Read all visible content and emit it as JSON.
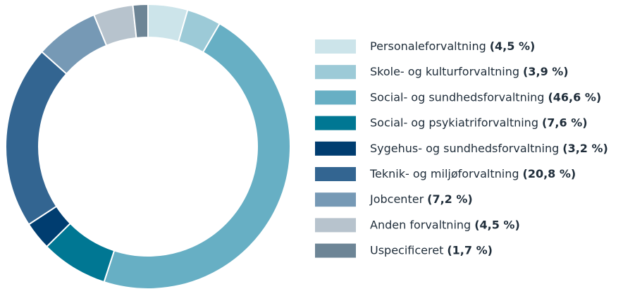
{
  "chart_data": {
    "type": "donut",
    "categories": [
      "Personaleforvaltning",
      "Skole- og kulturforvaltning",
      "Social- og sundhedsforvaltning",
      "Social- og psykiatriforvaltning",
      "Sygehus- og sundhedsforvaltning",
      "Teknik- og miljøforvaltning",
      "Jobcenter",
      "Anden forvaltning",
      "Uspecificeret"
    ],
    "values": [
      4.5,
      3.9,
      46.6,
      7.6,
      3.2,
      20.8,
      7.2,
      4.5,
      1.7
    ],
    "value_labels": [
      "(4,5 %)",
      "(3,9 %)",
      "(46,6 %)",
      "(7,6 %)",
      "(3,2 %)",
      "(20,8 %)",
      "(7,2 %)",
      "(4,5 %)",
      "(1,7 %)"
    ],
    "colors": [
      "#cce4ea",
      "#9ccad7",
      "#67afc4",
      "#007793",
      "#003d70",
      "#336591",
      "#7699b5",
      "#b7c3cd",
      "#6d8596"
    ]
  }
}
